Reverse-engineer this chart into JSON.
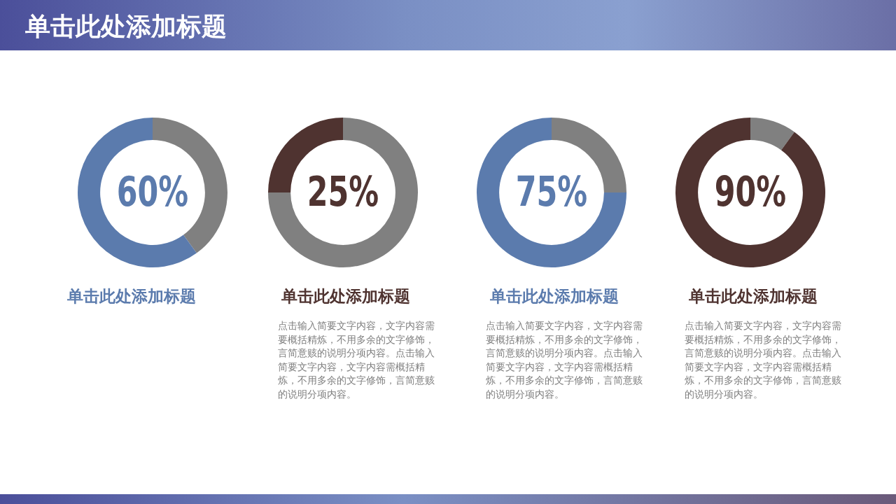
{
  "chart_data": [
    {
      "type": "donut",
      "title": "单击此处添加标题",
      "subtitle": "单击此处添加标题",
      "categories": [
        null,
        null
      ],
      "values": [
        40,
        60
      ],
      "colors": [
        "#808080",
        "#5b7bad"
      ],
      "value_labels": [
        null,
        "60%"
      ],
      "legend": false
    },
    {
      "type": "donut",
      "subtitle": "单击此处添加标题",
      "categories": [
        null,
        null
      ],
      "values": [
        75,
        25
      ],
      "colors": [
        "#808080",
        "#4f3330"
      ],
      "value_labels": [
        null,
        "25%"
      ],
      "legend": false,
      "annotations": [
        "点击输入简要文字内容，文字内容需要概括精炼，不用多余的文字修饰，言简意赅的说明分项内容。点击输入简要文字内容，文字内容需概括精炼，不用多余的文字修饰，言简意赅的说明分项内容。"
      ]
    },
    {
      "type": "donut",
      "subtitle": "单击此处添加标题",
      "categories": [
        null,
        null
      ],
      "values": [
        25,
        75
      ],
      "colors": [
        "#808080",
        "#5b7bad"
      ],
      "value_labels": [
        null,
        "75%"
      ],
      "legend": false,
      "annotations": [
        "点击输入简要文字内容，文字内容需要概括精炼，不用多余的文字修饰，言简意赅的说明分项内容。点击输入简要文字内容，文字内容需概括精炼，不用多余的文字修饰，言简意赅的说明分项内容。"
      ]
    },
    {
      "type": "donut",
      "subtitle": "单击此处添加标题",
      "categories": [
        null,
        null
      ],
      "values": [
        10,
        90
      ],
      "colors": [
        "#808080",
        "#4f3330"
      ],
      "value_labels": [
        null,
        "90%"
      ],
      "legend": false,
      "annotations": [
        "点击输入简要文字内容，文字内容需要概括精炼，不用多余的文字修饰，言简意赅的说明分项内容。点击输入简要文字内容，文字内容需概括精炼，不用多余的文字修饰，言简意赅的说明分项内容。"
      ]
    }
  ]
}
